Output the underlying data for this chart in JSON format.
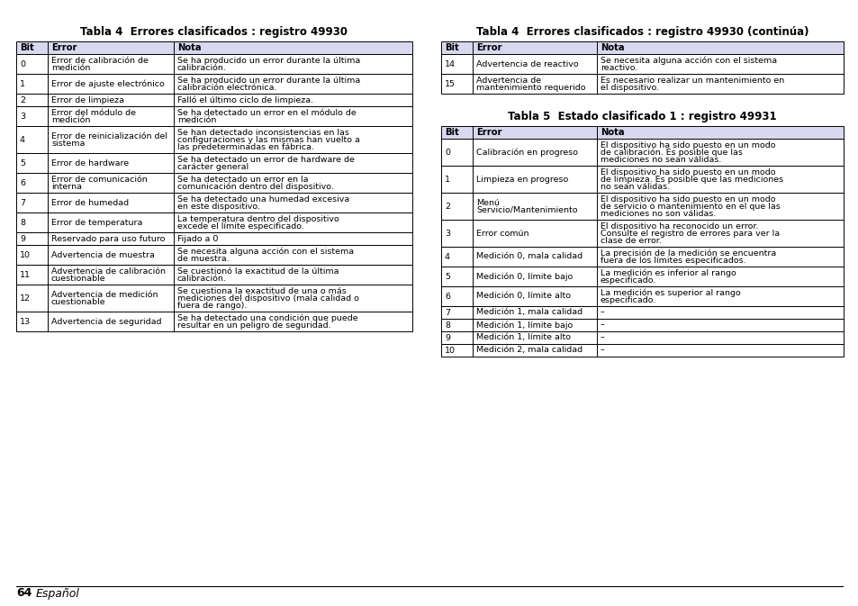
{
  "page_bg": "#ffffff",
  "page_number": "64",
  "page_label": "Español",
  "header_bg": "#d8d8f0",
  "table1_title": "Tabla 4  Errores clasificados : registro 49930",
  "table1_headers": [
    "Bit",
    "Error",
    "Nota"
  ],
  "table1_rows": [
    [
      "0",
      "Error de calibración de\nmedición",
      "Se ha producido un error durante la última\ncalibración."
    ],
    [
      "1",
      "Error de ajuste electrónico",
      "Se ha producido un error durante la última\ncalibración electrónica."
    ],
    [
      "2",
      "Error de limpieza",
      "Falló el último ciclo de limpieza."
    ],
    [
      "3",
      "Error del módulo de\nmedición",
      "Se ha detectado un error en el módulo de\nmedición"
    ],
    [
      "4",
      "Error de reinicialización del\nsistema",
      "Se han detectado inconsistencias en las\nconfiguraciones y las mismas han vuelto a\nlas predeterminadas en fábrica."
    ],
    [
      "5",
      "Error de hardware",
      "Se ha detectado un error de hardware de\ncarácter general"
    ],
    [
      "6",
      "Error de comunicación\ninterna",
      "Se ha detectado un error en la\ncomunicación dentro del dispositivo."
    ],
    [
      "7",
      "Error de humedad",
      "Se ha detectado una humedad excesiva\nen este dispositivo."
    ],
    [
      "8",
      "Error de temperatura",
      "La temperatura dentro del dispositivo\nexcede el límite especificado."
    ],
    [
      "9",
      "Reservado para uso futuro",
      "Fijado a 0"
    ],
    [
      "10",
      "Advertencia de muestra",
      "Se necesita alguna acción con el sistema\nde muestra."
    ],
    [
      "11",
      "Advertencia de calibración\ncuestionable",
      "Se cuestionó la exactitud de la última\ncalibración."
    ],
    [
      "12",
      "Advertencia de medición\ncuestionable",
      "Se cuestiona la exactitud de una o más\nmediciones del dispositivo (mala calidad o\nfuera de rango)."
    ],
    [
      "13",
      "Advertencia de seguridad",
      "Se ha detectado una condición que puede\nresultar en un peligro de seguridad."
    ]
  ],
  "table2_title": "Tabla 4  Errores clasificados : registro 49930 (continúa)",
  "table2_headers": [
    "Bit",
    "Error",
    "Nota"
  ],
  "table2_rows": [
    [
      "14",
      "Advertencia de reactivo",
      "Se necesita alguna acción con el sistema\nreactivo."
    ],
    [
      "15",
      "Advertencia de\nmantenimiento requerido",
      "Es necesario realizar un mantenimiento en\nel dispositivo."
    ]
  ],
  "table3_title": "Tabla 5  Estado clasificado 1 : registro 49931",
  "table3_headers": [
    "Bit",
    "Error",
    "Nota"
  ],
  "table3_rows": [
    [
      "0",
      "Calibración en progreso",
      "El dispositivo ha sido puesto en un modo\nde calibración. Es posible que las\nmediciones no sean válidas."
    ],
    [
      "1",
      "Limpieza en progreso",
      "El dispositivo ha sido puesto en un modo\nde limpieza. Es posible que las mediciones\nno sean válidas."
    ],
    [
      "2",
      "Menú\nServicio/Mantenimiento",
      "El dispositivo ha sido puesto en un modo\nde servicio o mantenimiento en el que las\nmediciones no son válidas."
    ],
    [
      "3",
      "Error común",
      "El dispositivo ha reconocido un error.\nConsulte el registro de errores para ver la\nclase de error."
    ],
    [
      "4",
      "Medición 0, mala calidad",
      "La precisión de la medición se encuentra\nfuera de los límites especificados."
    ],
    [
      "5",
      "Medición 0, límite bajo",
      "La medición es inferior al rango\nespecificado."
    ],
    [
      "6",
      "Medición 0, límite alto",
      "La medición es superior al rango\nespecificado."
    ],
    [
      "7",
      "Medición 1, mala calidad",
      "–"
    ],
    [
      "8",
      "Medición 1, límite bajo",
      "–"
    ],
    [
      "9",
      "Medición 1, límite alto",
      "–"
    ],
    [
      "10",
      "Medición 2, mala calidad",
      "–"
    ]
  ]
}
